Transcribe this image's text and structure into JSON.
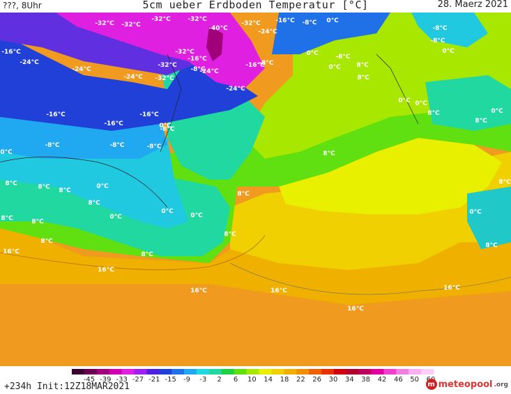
{
  "header": {
    "left_text": "???, 8Uhr",
    "title": "5cm ueber Erdboden Temperatur [°C]",
    "date": "28. Maerz 2021"
  },
  "map": {
    "labels": [
      "-32°C",
      "-32°C",
      "-32°C",
      "-32°C",
      "-40°C",
      "-32°C",
      "-24°C",
      "-16°C",
      "-8°C",
      "0°C",
      "-16°C",
      "-24°C",
      "-24°C",
      "-24°C",
      "-32°C",
      "-32°C",
      "-16°C",
      "-8°C",
      "-24°C",
      "-32°C",
      "-24°C",
      "-16°C",
      "-8°C",
      "0°C",
      "-8°C",
      "0°C",
      "8°C",
      "-8°C",
      "0°C",
      "-16°C",
      "-16°C",
      "-16°C",
      "-8°C",
      "0°C",
      "-8°C",
      "-8°C",
      "-8°C",
      "0°C",
      "8°C",
      "8°C",
      "8°C",
      "8°C",
      "0°C",
      "0°C",
      "8°C",
      "8°C",
      "0°C",
      "0°C",
      "8°C",
      "8°C",
      "8°C",
      "8°C",
      "16°C",
      "16°C",
      "16°C",
      "16°C",
      "16°C",
      "16°C",
      "8°C",
      "0°C",
      "8°C",
      "-8°C",
      "0°C",
      "0°C",
      "8°C",
      "0°C",
      "8°C",
      "8°C",
      "8°C"
    ]
  },
  "legend": {
    "ticks": [
      "-45",
      "-39",
      "-33",
      "-27",
      "-21",
      "-15",
      "-9",
      "-3",
      "2",
      "6",
      "10",
      "14",
      "18",
      "22",
      "26",
      "30",
      "34",
      "38",
      "42",
      "46",
      "50",
      "60"
    ],
    "colors": [
      "#3a0030",
      "#6a0050",
      "#a0007a",
      "#d000b0",
      "#e020e0",
      "#a020f0",
      "#5020e0",
      "#2040d8",
      "#2070e8",
      "#20a8f0",
      "#20d8e0",
      "#20d8a0",
      "#20d040",
      "#60e010",
      "#a8e800",
      "#e8f000",
      "#f0d000",
      "#f0b000",
      "#f09000",
      "#f06000",
      "#e83000",
      "#d00010",
      "#b00030",
      "#c00060",
      "#e000a0",
      "#f040d0",
      "#f080e0",
      "#f8b0f0",
      "#fad0f8"
    ]
  },
  "footer": {
    "init": "+234h Init:12Z18MAR2021",
    "brand": "meteopool",
    "brand_suffix": ".org"
  }
}
